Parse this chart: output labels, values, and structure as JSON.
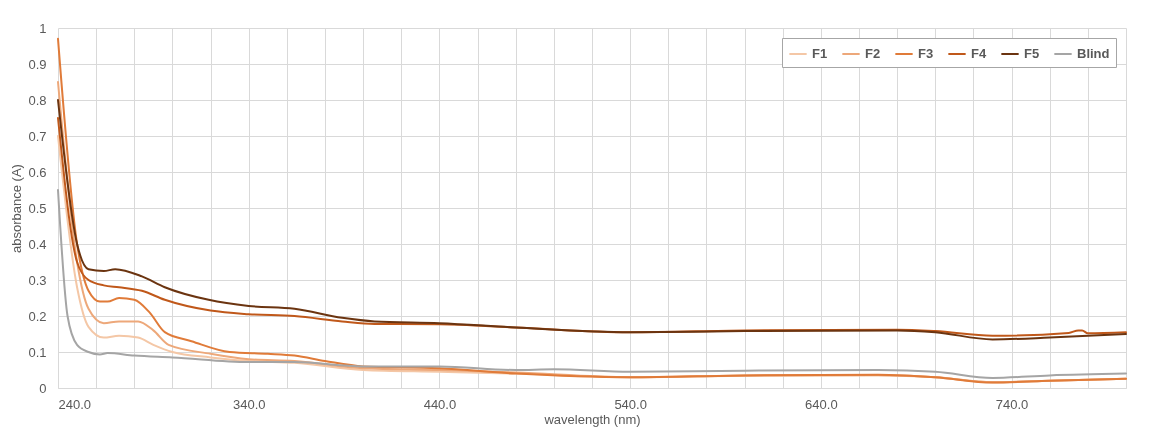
{
  "chart_data": {
    "type": "line",
    "xlabel": "wavelength (nm)",
    "ylabel": "absorbance (A)",
    "xlim": [
      240,
      800
    ],
    "ylim": [
      0,
      1
    ],
    "xticks": [
      {
        "value": 240,
        "label": "240.0"
      },
      {
        "value": 260,
        "label": null
      },
      {
        "value": 280,
        "label": null
      },
      {
        "value": 300,
        "label": null
      },
      {
        "value": 320,
        "label": null
      },
      {
        "value": 340,
        "label": "340.0"
      },
      {
        "value": 360,
        "label": null
      },
      {
        "value": 380,
        "label": null
      },
      {
        "value": 400,
        "label": null
      },
      {
        "value": 420,
        "label": null
      },
      {
        "value": 440,
        "label": "440.0"
      },
      {
        "value": 460,
        "label": null
      },
      {
        "value": 480,
        "label": null
      },
      {
        "value": 500,
        "label": null
      },
      {
        "value": 520,
        "label": null
      },
      {
        "value": 540,
        "label": "540.0"
      },
      {
        "value": 560,
        "label": null
      },
      {
        "value": 580,
        "label": null
      },
      {
        "value": 600,
        "label": null
      },
      {
        "value": 620,
        "label": null
      },
      {
        "value": 640,
        "label": "640.0"
      },
      {
        "value": 660,
        "label": null
      },
      {
        "value": 680,
        "label": null
      },
      {
        "value": 700,
        "label": null
      },
      {
        "value": 720,
        "label": null
      },
      {
        "value": 740,
        "label": "740.0"
      },
      {
        "value": 760,
        "label": null
      },
      {
        "value": 780,
        "label": null
      },
      {
        "value": 800,
        "label": null
      }
    ],
    "yticks": [
      0,
      0.1,
      0.2,
      0.3,
      0.4,
      0.5,
      0.6,
      0.7,
      0.8,
      0.9,
      1
    ],
    "grid": true,
    "legend": "top right",
    "marker": "none",
    "line_style": "solid",
    "series": [
      {
        "name": "F1",
        "color": "#f4c7a6",
        "x": [
          240,
          250,
          256,
          264,
          272,
          282,
          290,
          300,
          320,
          340,
          364,
          400,
          440,
          480,
          540,
          600,
          670,
          700,
          730,
          760,
          800
        ],
        "values": [
          0.7,
          0.28,
          0.17,
          0.14,
          0.145,
          0.14,
          0.12,
          0.1,
          0.085,
          0.075,
          0.07,
          0.05,
          0.045,
          0.04,
          0.03,
          0.034,
          0.035,
          0.03,
          0.016,
          0.02,
          0.026
        ]
      },
      {
        "name": "F2",
        "color": "#eda87a",
        "x": [
          240,
          250,
          256,
          264,
          272,
          282,
          290,
          298,
          320,
          340,
          364,
          400,
          440,
          480,
          540,
          600,
          670,
          700,
          730,
          760,
          800
        ],
        "values": [
          0.85,
          0.35,
          0.22,
          0.18,
          0.185,
          0.185,
          0.16,
          0.12,
          0.095,
          0.08,
          0.075,
          0.055,
          0.05,
          0.043,
          0.03,
          0.035,
          0.036,
          0.03,
          0.016,
          0.02,
          0.026
        ]
      },
      {
        "name": "F3",
        "color": "#e07b39",
        "x": [
          240,
          250,
          256,
          262,
          266,
          272,
          280,
          288,
          296,
          310,
          330,
          350,
          364,
          380,
          400,
          440,
          480,
          540,
          600,
          670,
          700,
          730,
          760,
          800
        ],
        "values": [
          0.97,
          0.4,
          0.27,
          0.24,
          0.24,
          0.25,
          0.245,
          0.21,
          0.155,
          0.13,
          0.1,
          0.095,
          0.09,
          0.075,
          0.06,
          0.055,
          0.04,
          0.03,
          0.035,
          0.037,
          0.03,
          0.015,
          0.02,
          0.026
        ]
      },
      {
        "name": "F4",
        "color": "#c0581a",
        "x": [
          240,
          250,
          256,
          264,
          272,
          284,
          296,
          320,
          340,
          364,
          389,
          406,
          440,
          480,
          540,
          600,
          680,
          700,
          730,
          770,
          775,
          777,
          780,
          800
        ],
        "values": [
          0.75,
          0.35,
          0.3,
          0.285,
          0.28,
          0.27,
          0.245,
          0.215,
          0.205,
          0.2,
          0.185,
          0.178,
          0.177,
          0.168,
          0.155,
          0.16,
          0.162,
          0.158,
          0.145,
          0.153,
          0.16,
          0.16,
          0.152,
          0.155
        ]
      },
      {
        "name": "F5",
        "color": "#6b3410",
        "x": [
          240,
          250,
          256,
          264,
          270,
          284,
          296,
          319,
          340,
          364,
          389,
          406,
          440,
          480,
          540,
          600,
          680,
          700,
          730,
          760,
          800
        ],
        "values": [
          0.8,
          0.4,
          0.33,
          0.325,
          0.33,
          0.31,
          0.28,
          0.245,
          0.228,
          0.22,
          0.195,
          0.185,
          0.18,
          0.168,
          0.155,
          0.158,
          0.16,
          0.155,
          0.135,
          0.14,
          0.15
        ]
      },
      {
        "name": "Blind",
        "color": "#a5a5a5",
        "x": [
          240,
          245,
          250,
          256,
          262,
          266,
          280,
          300,
          340,
          364,
          400,
          440,
          480,
          500,
          540,
          600,
          670,
          700,
          730,
          760,
          800
        ],
        "values": [
          0.55,
          0.2,
          0.12,
          0.1,
          0.093,
          0.097,
          0.09,
          0.085,
          0.072,
          0.072,
          0.06,
          0.06,
          0.05,
          0.052,
          0.045,
          0.048,
          0.05,
          0.045,
          0.028,
          0.035,
          0.04
        ]
      }
    ]
  }
}
